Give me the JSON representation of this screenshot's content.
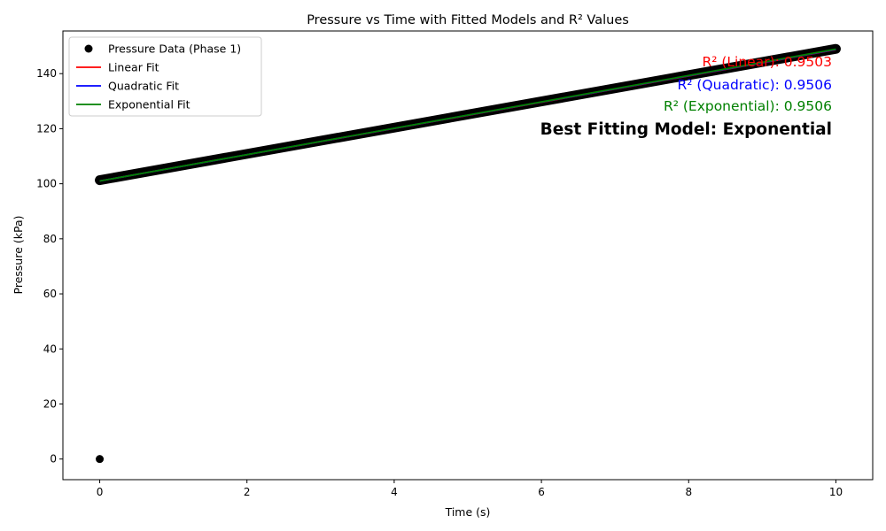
{
  "chart_data": {
    "type": "scatter",
    "title": "Pressure vs Time with Fitted Models and R² Values",
    "xlabel": "Time (s)",
    "ylabel": "Pressure (kPa)",
    "xlim": [
      -0.5,
      10.5
    ],
    "ylim": [
      -7.5,
      155.5
    ],
    "x_ticks": [
      0,
      2,
      4,
      6,
      8,
      10
    ],
    "y_ticks": [
      0,
      20,
      40,
      60,
      80,
      100,
      120,
      140
    ],
    "x_tick_labels": [
      "0",
      "2",
      "4",
      "6",
      "8",
      "10"
    ],
    "y_tick_labels": [
      "0",
      "20",
      "40",
      "60",
      "80",
      "100",
      "120",
      "140"
    ],
    "grid": false,
    "legend_position": "upper left",
    "series": [
      {
        "name": "Pressure Data (Phase 1)",
        "kind": "scatter",
        "color": "#000000",
        "points": [
          [
            0,
            0
          ],
          [
            0,
            101.3
          ],
          [
            10,
            149
          ]
        ],
        "dense_segment": {
          "x_start": 0,
          "y_start": 101.3,
          "x_end": 10,
          "y_end": 149
        }
      },
      {
        "name": "Linear Fit",
        "kind": "line",
        "color": "#ff0000",
        "x": [
          0,
          10
        ],
        "y": [
          101,
          148.7
        ]
      },
      {
        "name": "Quadratic Fit",
        "kind": "line",
        "color": "#0000ff",
        "x": [
          0,
          10
        ],
        "y": [
          101,
          148.8
        ]
      },
      {
        "name": "Exponential Fit",
        "kind": "line",
        "color": "#008000",
        "x": [
          0,
          10
        ],
        "y": [
          101,
          148.9
        ]
      }
    ],
    "annotations": [
      {
        "text": "R² (Linear): 0.9503",
        "color": "#ff0000",
        "position": "top-right"
      },
      {
        "text": "R² (Quadratic): 0.9506",
        "color": "#0000ff",
        "position": "top-right"
      },
      {
        "text": "R² (Exponential): 0.9506",
        "color": "#008000",
        "position": "top-right"
      },
      {
        "text": "Best Fitting Model: Exponential",
        "color": "#000000",
        "position": "top-right",
        "bold": true
      }
    ]
  }
}
